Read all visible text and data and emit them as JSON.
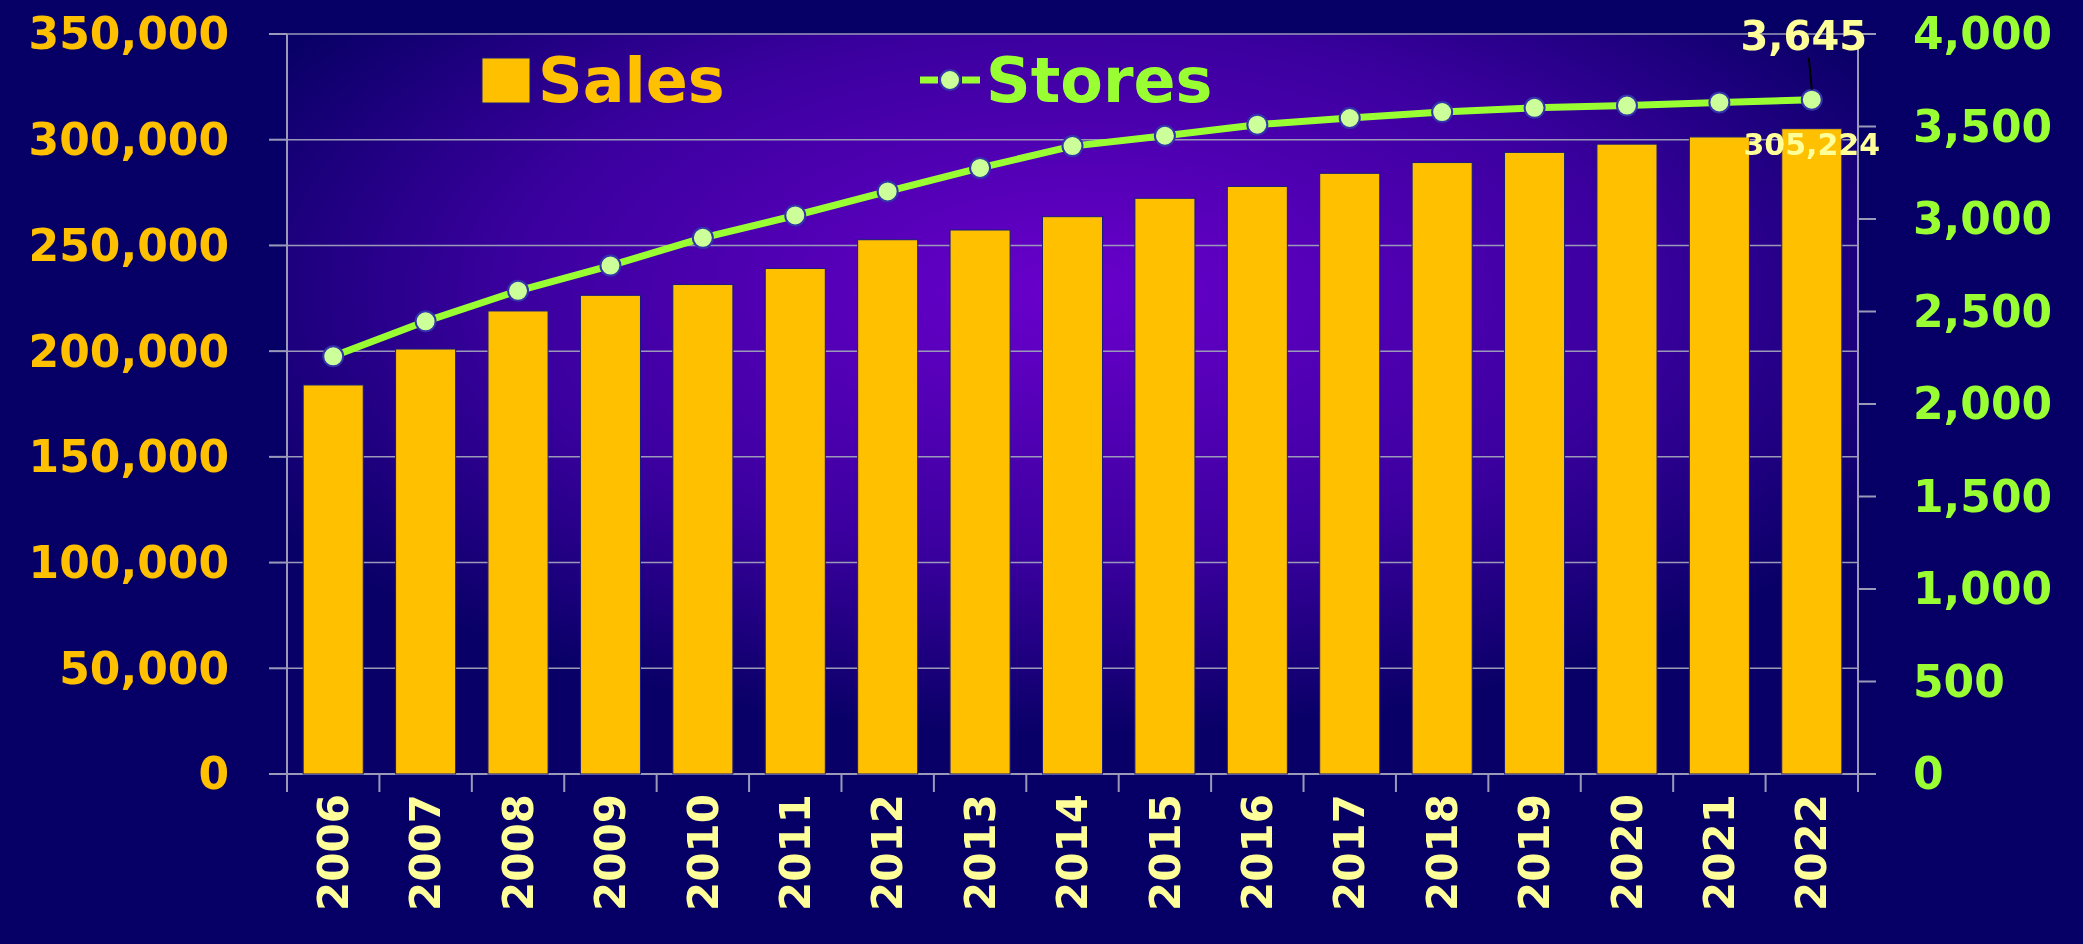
{
  "chart_data": {
    "type": "bar",
    "categories": [
      "2006",
      "2007",
      "2008",
      "2009",
      "2010",
      "2011",
      "2012",
      "2013",
      "2014",
      "2015",
      "2016",
      "2017",
      "2018",
      "2019",
      "2020",
      "2021",
      "2022"
    ],
    "series": [
      {
        "name": "Sales",
        "color": "#ffc000",
        "values": [
          184000,
          201000,
          219000,
          226400,
          231500,
          239100,
          252700,
          257300,
          263600,
          272300,
          277900,
          284100,
          289200,
          294000,
          297900,
          301300,
          305224
        ],
        "value_labels": [
          null,
          null,
          null,
          null,
          null,
          null,
          null,
          null,
          null,
          null,
          null,
          null,
          null,
          null,
          null,
          null,
          "305,224"
        ]
      },
      {
        "name": "Stores",
        "type": "line",
        "axis": "y2",
        "color": "#99ff33",
        "marker": "circle",
        "values": [
          2258,
          2447,
          2612,
          2748,
          2898,
          3019,
          3149,
          3276,
          3394,
          3450,
          3510,
          3546,
          3578,
          3601,
          3613,
          3630,
          3645
        ],
        "value_labels": [
          null,
          null,
          null,
          null,
          null,
          null,
          null,
          null,
          null,
          null,
          null,
          null,
          null,
          null,
          null,
          null,
          "3,645"
        ]
      }
    ],
    "ylim": [
      0,
      350000
    ],
    "yticks": [
      {
        "value": 0,
        "label": "0"
      },
      {
        "value": 50000,
        "label": "50,000"
      },
      {
        "value": 100000,
        "label": "100,000"
      },
      {
        "value": 150000,
        "label": "150,000"
      },
      {
        "value": 200000,
        "label": "200,000"
      },
      {
        "value": 250000,
        "label": "250,000"
      },
      {
        "value": 300000,
        "label": "300,000"
      },
      {
        "value": 350000,
        "label": "350,000"
      }
    ],
    "y2lim": [
      0,
      4000
    ],
    "y2ticks": [
      {
        "value": 0,
        "label": "0"
      },
      {
        "value": 500,
        "label": "500"
      },
      {
        "value": 1000,
        "label": "1,000"
      },
      {
        "value": 1500,
        "label": "1,500"
      },
      {
        "value": 2000,
        "label": "2,000"
      },
      {
        "value": 2500,
        "label": "2,500"
      },
      {
        "value": 3000,
        "label": "3,000"
      },
      {
        "value": 3500,
        "label": "3,500"
      },
      {
        "value": 4000,
        "label": "4,000"
      }
    ],
    "grid": "y",
    "legend": "top"
  }
}
